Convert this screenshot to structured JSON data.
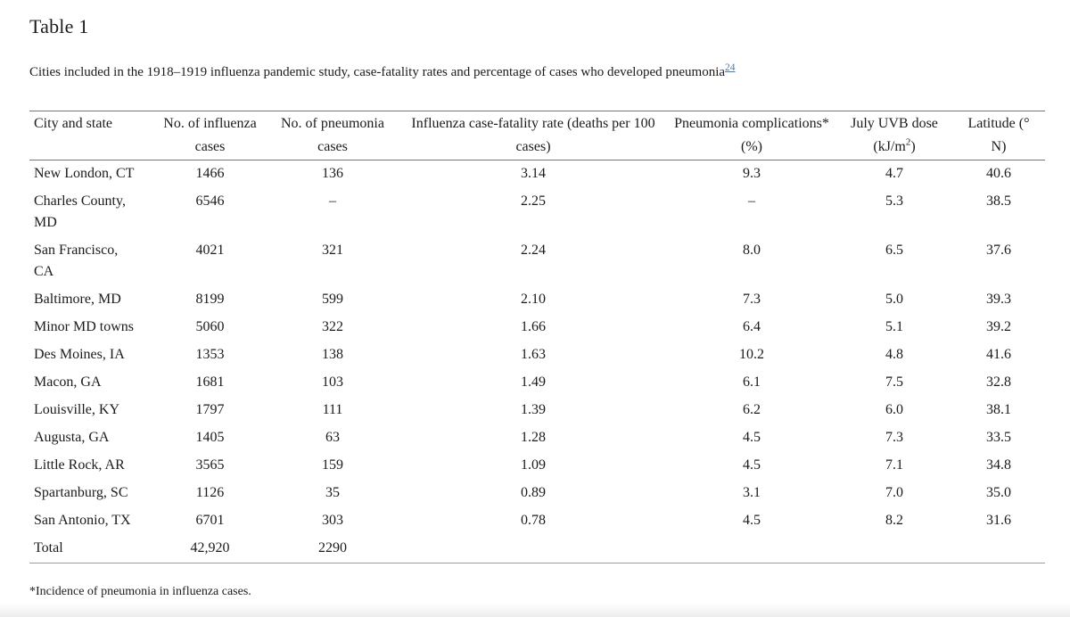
{
  "page": {
    "title": "Table 1",
    "caption": "Cities included in the 1918–1919 influenza pandemic study, case-fatality rates and percentage of cases who developed pneumonia",
    "caption_reference": "24",
    "footnote": "*Incidence of pneumonia in influenza cases."
  },
  "colors": {
    "text": "#1b1b1b",
    "link": "#55789b",
    "rule_dark": "#767676",
    "rule_light": "#9c9c9c"
  },
  "chart_data": {
    "type": "table",
    "title": "Table 1",
    "columns": [
      "City and state",
      "No. of influenza cases",
      "No. of pneumonia cases",
      "Influenza case-fatality rate (deaths per 100 cases)",
      "Pneumonia complications* (%)",
      "July UVB dose (kJ/m2)",
      "Latitude (° N)"
    ],
    "rows": [
      [
        "New London, CT",
        "1466",
        "136",
        "3.14",
        "9.3",
        "4.7",
        "40.6"
      ],
      [
        "Charles County, MD",
        "6546",
        "–",
        "2.25",
        "–",
        "5.3",
        "38.5"
      ],
      [
        "San Francisco, CA",
        "4021",
        "321",
        "2.24",
        "8.0",
        "6.5",
        "37.6"
      ],
      [
        "Baltimore, MD",
        "8199",
        "599",
        "2.10",
        "7.3",
        "5.0",
        "39.3"
      ],
      [
        "Minor MD towns",
        "5060",
        "322",
        "1.66",
        "6.4",
        "5.1",
        "39.2"
      ],
      [
        "Des Moines, IA",
        "1353",
        "138",
        "1.63",
        "10.2",
        "4.8",
        "41.6"
      ],
      [
        "Macon, GA",
        "1681",
        "103",
        "1.49",
        "6.1",
        "7.5",
        "32.8"
      ],
      [
        "Louisville, KY",
        "1797",
        "111",
        "1.39",
        "6.2",
        "6.0",
        "38.1"
      ],
      [
        "Augusta, GA",
        "1405",
        "63",
        "1.28",
        "4.5",
        "7.3",
        "33.5"
      ],
      [
        "Little Rock, AR",
        "3565",
        "159",
        "1.09",
        "4.5",
        "7.1",
        "34.8"
      ],
      [
        "Spartanburg, SC",
        "1126",
        "35",
        "0.89",
        "3.1",
        "7.0",
        "35.0"
      ],
      [
        "San Antonio, TX",
        "6701",
        "303",
        "0.78",
        "4.5",
        "8.2",
        "31.6"
      ],
      [
        "Total",
        "42,920",
        "2290",
        "",
        "",
        "",
        ""
      ]
    ]
  },
  "table": {
    "headers": [
      "City and state",
      "No. of influenza cases",
      "No. of pneumonia cases",
      "Influenza case-fatality rate (deaths per 100 cases)",
      "Pneumonia complications* (%)",
      {
        "pre": "July UVB dose (kJ/m",
        "sup": "2",
        "post": ")"
      },
      "Latitude (° N)"
    ]
  }
}
